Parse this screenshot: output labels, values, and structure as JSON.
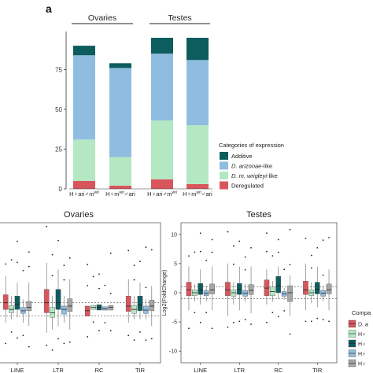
{
  "colors": {
    "additive": "#0d5c5e",
    "arizonae_like": "#8fbde0",
    "wrigleyi_like": "#b3e8c2",
    "deregulated": "#d9555c",
    "gray_box": "#a6a6a6",
    "axis": "#333333"
  },
  "chart_data": [
    {
      "type": "bar",
      "stacked": true,
      "panel_label": "a",
      "group_labels": [
        "Ovaries",
        "Testes"
      ],
      "categories": [
        "H♀ari♂m^wri",
        "H♀m^wri♂ari",
        "H♀ari♂m^wri",
        "H♀m^wri♂ari"
      ],
      "category_parts": [
        {
          "a": "H",
          "b": "ari",
          "c": "m",
          "sup": "wri"
        },
        {
          "a": "H",
          "b": "m",
          "sup": "wri",
          "c": "ari"
        },
        {
          "a": "H",
          "b": "ari",
          "c": "m",
          "sup": "wri"
        },
        {
          "a": "H",
          "b": "m",
          "sup": "wri",
          "c": "ari"
        }
      ],
      "series": [
        {
          "name": "Deregulated",
          "color": "#d9555c",
          "values": [
            5,
            2,
            6,
            3
          ]
        },
        {
          "name": "D. m. wrigleyi-like",
          "color": "#b3e8c2",
          "values": [
            26,
            18,
            37,
            37
          ]
        },
        {
          "name": "D. arizonae-like",
          "color": "#8fbde0",
          "values": [
            53,
            56,
            42,
            41
          ]
        },
        {
          "name": "Additive",
          "color": "#0d5c5e",
          "values": [
            6,
            3,
            10,
            14
          ]
        }
      ],
      "yticks": [
        0,
        25,
        50,
        75
      ],
      "ylim": [
        0,
        95
      ],
      "legend_title": "Categories of expression",
      "legend": [
        {
          "label": "Additive",
          "italic": false,
          "color": "#0d5c5e"
        },
        {
          "label": "D. arizonae-like",
          "italic_part": "D. arizonae",
          "rest": "-like",
          "color": "#8fbde0"
        },
        {
          "label": "D. m. wrigleyi-like",
          "italic_part": "D. m. wrigleyi",
          "rest": "-like",
          "color": "#b3e8c2"
        },
        {
          "label": "Deregulated",
          "italic": false,
          "color": "#d9555c"
        }
      ]
    },
    {
      "type": "box",
      "title": "Ovaries",
      "categories": [
        "LINE",
        "LTR",
        "RC",
        "TIR"
      ],
      "ylim": [
        -8,
        13
      ],
      "hlines": [
        1,
        -1
      ],
      "groups": [
        {
          "cat": "LINE",
          "boxes": [
            {
              "color": "#d9555c",
              "q1": 0,
              "med": 1,
              "q3": 2.2,
              "lo": -2,
              "hi": 5
            },
            {
              "color": "#b3e8c2",
              "q1": -0.5,
              "med": 0,
              "q3": 0.6,
              "lo": -1.5,
              "hi": 2
            },
            {
              "color": "#0d5c5e",
              "q1": 0,
              "med": 0.8,
              "q3": 2,
              "lo": -1.2,
              "hi": 4
            },
            {
              "color": "#8fbde0",
              "q1": -0.6,
              "med": -0.2,
              "q3": 0.3,
              "lo": -2,
              "hi": 1.5
            },
            {
              "color": "#a6a6a6",
              "q1": -0.2,
              "med": 0.3,
              "q3": 1.2,
              "lo": -2.5,
              "hi": 4
            }
          ]
        },
        {
          "cat": "LTR",
          "boxes": [
            {
              "color": "#d9555c",
              "q1": -0.5,
              "med": 1,
              "q3": 3,
              "lo": -3.5,
              "hi": 7
            },
            {
              "color": "#b3e8c2",
              "q1": -1.2,
              "med": -0.5,
              "q3": 0.3,
              "lo": -3,
              "hi": 2
            },
            {
              "color": "#0d5c5e",
              "q1": 0,
              "med": 1,
              "q3": 3,
              "lo": -2.5,
              "hi": 6
            },
            {
              "color": "#8fbde0",
              "q1": -0.7,
              "med": 0,
              "q3": 0.5,
              "lo": -2,
              "hi": 2
            },
            {
              "color": "#a6a6a6",
              "q1": -0.3,
              "med": 0.5,
              "q3": 1.6,
              "lo": -3,
              "hi": 4.5
            }
          ]
        },
        {
          "cat": "RC",
          "boxes": [
            {
              "color": "#d9555c",
              "q1": -1,
              "med": -0.2,
              "q3": 0.5,
              "lo": -1,
              "hi": 0.5
            },
            {
              "color": "#b3e8c2",
              "q1": 0,
              "med": 0.3,
              "q3": 0.6,
              "lo": 0,
              "hi": 0.6
            },
            {
              "color": "#0d5c5e",
              "q1": -0.1,
              "med": 0.3,
              "q3": 0.7,
              "lo": -0.1,
              "hi": 0.7
            },
            {
              "color": "#8fbde0",
              "q1": -0.1,
              "med": 0.1,
              "q3": 0.4,
              "lo": -0.1,
              "hi": 0.4
            },
            {
              "color": "#a6a6a6",
              "q1": -0.1,
              "med": 0.3,
              "q3": 0.6,
              "lo": -0.1,
              "hi": 0.6
            }
          ]
        },
        {
          "cat": "TIR",
          "boxes": [
            {
              "color": "#d9555c",
              "q1": -0.3,
              "med": 0.5,
              "q3": 2,
              "lo": -2,
              "hi": 4.5
            },
            {
              "color": "#b3e8c2",
              "q1": -0.6,
              "med": 0,
              "q3": 0.6,
              "lo": -1.5,
              "hi": 2
            },
            {
              "color": "#0d5c5e",
              "q1": -0.2,
              "med": 0.7,
              "q3": 2,
              "lo": -1.5,
              "hi": 4
            },
            {
              "color": "#8fbde0",
              "q1": -0.6,
              "med": -0.1,
              "q3": 0.5,
              "lo": -1.5,
              "hi": 1.5
            },
            {
              "color": "#a6a6a6",
              "q1": -0.2,
              "med": 0.5,
              "q3": 1.4,
              "lo": -2.5,
              "hi": 3.5
            }
          ]
        }
      ]
    },
    {
      "type": "box",
      "title": "Testes",
      "ylabel": "Log2(FoldChange)",
      "categories": [
        "LINE",
        "LTR",
        "RC",
        "TIR"
      ],
      "yticks": [
        -10,
        -5,
        0,
        5,
        10
      ],
      "ylim": [
        -12,
        12
      ],
      "hlines": [
        1,
        -1
      ],
      "groups": [
        {
          "cat": "LINE",
          "boxes": [
            {
              "color": "#d9555c",
              "q1": -0.5,
              "med": 0.5,
              "q3": 1.8,
              "lo": -3,
              "hi": 4.5
            },
            {
              "color": "#b3e8c2",
              "q1": -0.5,
              "med": 0,
              "q3": 0.5,
              "lo": -1.5,
              "hi": 1.5
            },
            {
              "color": "#0d5c5e",
              "q1": -0.3,
              "med": 0.5,
              "q3": 1.6,
              "lo": -2,
              "hi": 4
            },
            {
              "color": "#8fbde0",
              "q1": -0.5,
              "med": -0.1,
              "q3": 0.4,
              "lo": -1.5,
              "hi": 1.2
            },
            {
              "color": "#a6a6a6",
              "q1": -0.2,
              "med": 0.5,
              "q3": 1.5,
              "lo": -3,
              "hi": 4.5
            }
          ]
        },
        {
          "cat": "LTR",
          "boxes": [
            {
              "color": "#d9555c",
              "q1": -0.5,
              "med": 0.5,
              "q3": 1.8,
              "lo": -4,
              "hi": 5
            },
            {
              "color": "#b3e8c2",
              "q1": -0.6,
              "med": 0,
              "q3": 0.5,
              "lo": -2,
              "hi": 1.8
            },
            {
              "color": "#0d5c5e",
              "q1": -0.3,
              "med": 0.6,
              "q3": 1.6,
              "lo": -3,
              "hi": 4.5
            },
            {
              "color": "#8fbde0",
              "q1": -0.6,
              "med": -0.1,
              "q3": 0.4,
              "lo": -1.5,
              "hi": 1.5
            },
            {
              "color": "#a6a6a6",
              "q1": -0.3,
              "med": 0.4,
              "q3": 1.4,
              "lo": -3.5,
              "hi": 4.5
            }
          ]
        },
        {
          "cat": "RC",
          "boxes": [
            {
              "color": "#d9555c",
              "q1": -0.5,
              "med": 0.8,
              "q3": 2.2,
              "lo": -2,
              "hi": 4
            },
            {
              "color": "#b3e8c2",
              "q1": -0.5,
              "med": 0.2,
              "q3": 1,
              "lo": -1.5,
              "hi": 2
            },
            {
              "color": "#0d5c5e",
              "q1": 0,
              "med": 1.2,
              "q3": 2.8,
              "lo": -1,
              "hi": 4.5
            },
            {
              "color": "#8fbde0",
              "q1": -0.6,
              "med": -0.2,
              "q3": 0.2,
              "lo": -1.2,
              "hi": 0.8
            },
            {
              "color": "#a6a6a6",
              "q1": -1.5,
              "med": 0,
              "q3": 1.2,
              "lo": -4,
              "hi": 3
            }
          ]
        },
        {
          "cat": "TIR",
          "boxes": [
            {
              "color": "#d9555c",
              "q1": -0.3,
              "med": 0.5,
              "q3": 2,
              "lo": -3,
              "hi": 5
            },
            {
              "color": "#b3e8c2",
              "q1": -0.5,
              "med": 0,
              "q3": 0.5,
              "lo": -1.8,
              "hi": 1.8
            },
            {
              "color": "#0d5c5e",
              "q1": -0.2,
              "med": 0.6,
              "q3": 1.8,
              "lo": -2.5,
              "hi": 4.5
            },
            {
              "color": "#8fbde0",
              "q1": -0.6,
              "med": -0.1,
              "q3": 0.4,
              "lo": -1.5,
              "hi": 1.2
            },
            {
              "color": "#a6a6a6",
              "q1": -0.2,
              "med": 0.5,
              "q3": 1.5,
              "lo": -3,
              "hi": 4
            }
          ]
        }
      ]
    }
  ],
  "comp_legend": {
    "title": "Compa",
    "items": [
      {
        "color": "#d9555c",
        "text": "D. a"
      },
      {
        "color": "#b3e8c2",
        "text": "H♀"
      },
      {
        "color": "#0d5c5e",
        "text": "H♀"
      },
      {
        "color": "#8fbde0",
        "text": "H♀"
      },
      {
        "color": "#a6a6a6",
        "text": "H♀"
      }
    ]
  }
}
